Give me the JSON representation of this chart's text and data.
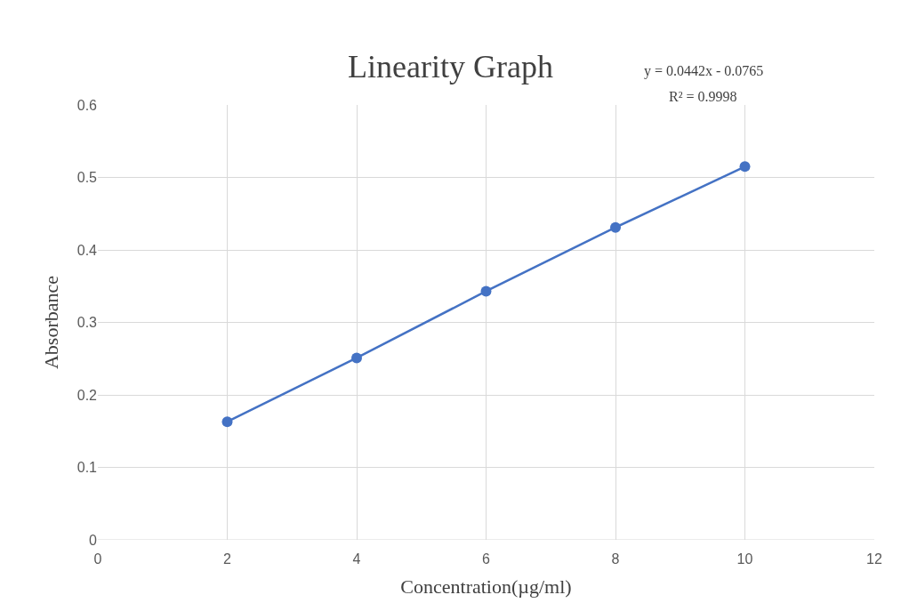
{
  "chart_data": {
    "type": "line",
    "title": "Linearity Graph",
    "xlabel": "Concentration(µg/ml)",
    "ylabel": "Absorbance",
    "annotations": [
      "y = 0.0442x - 0.0765",
      "R² = 0.9998"
    ],
    "x": [
      2,
      4,
      6,
      8,
      10
    ],
    "series": [
      {
        "color": "#4472c4",
        "values": [
          0.163,
          0.251,
          0.343,
          0.431,
          0.515
        ]
      }
    ],
    "xlim": [
      0,
      12
    ],
    "xticks": [
      0,
      2,
      4,
      6,
      8,
      10,
      12
    ],
    "ylim": [
      0,
      0.6
    ],
    "yticks": [
      0,
      0.1,
      0.2,
      0.3,
      0.4,
      0.5,
      0.6
    ],
    "grid": true,
    "marker": "circle",
    "line_style": "solid"
  }
}
